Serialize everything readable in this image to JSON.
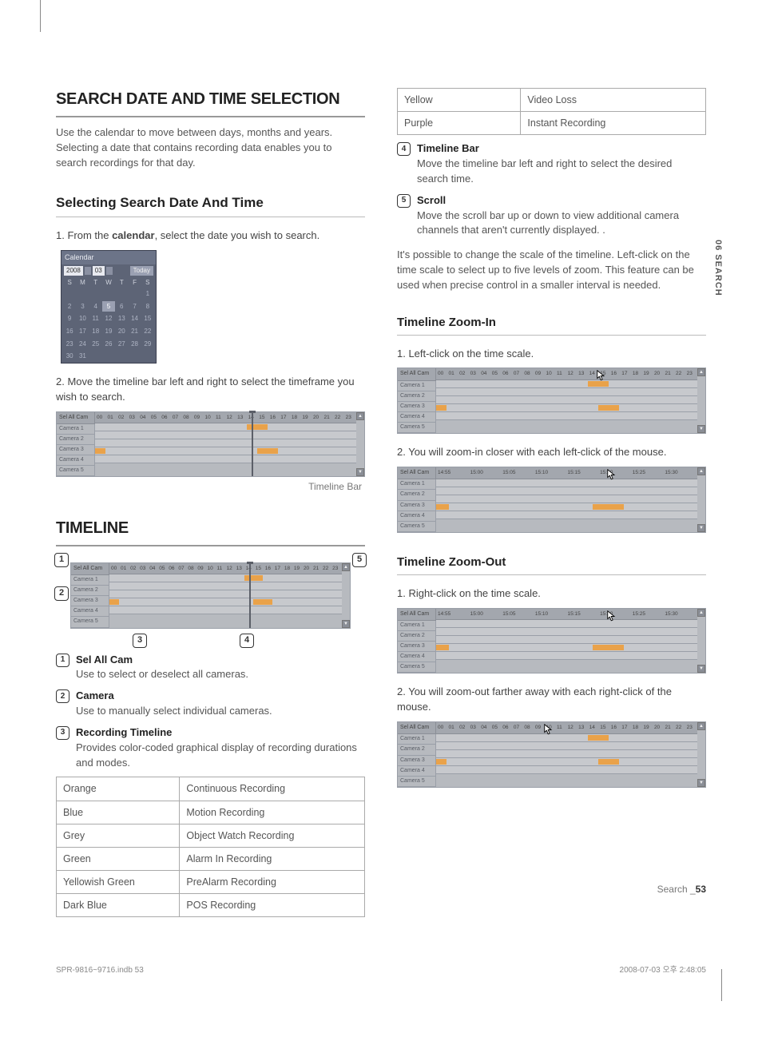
{
  "side_tab": "06 SEARCH",
  "left": {
    "h1": "SEARCH DATE AND TIME SELECTION",
    "intro": "Use the calendar to move between days, months and years. Selecting a date that contains recording data enables you to search recordings for that day.",
    "h2": "Selecting Search Date And Time",
    "step1_pre": "1. From the ",
    "step1_bold": "calendar",
    "step1_post": ", select the date you wish to search.",
    "calendar": {
      "title": "Calendar",
      "year": "2008",
      "month": "03",
      "today": "Today",
      "dow": [
        "S",
        "M",
        "T",
        "W",
        "T",
        "F",
        "S"
      ],
      "weeks": [
        [
          "",
          "",
          "",
          "",
          "",
          "",
          "1"
        ],
        [
          "2",
          "3",
          "4",
          "5",
          "6",
          "7",
          "8"
        ],
        [
          "9",
          "10",
          "11",
          "12",
          "13",
          "14",
          "15"
        ],
        [
          "16",
          "17",
          "18",
          "19",
          "20",
          "21",
          "22"
        ],
        [
          "23",
          "24",
          "25",
          "26",
          "27",
          "28",
          "29"
        ],
        [
          "30",
          "31",
          "",
          "",
          "",
          "",
          ""
        ]
      ],
      "selected": "5"
    },
    "step2": "2. Move the timeline bar left and right to select the timeframe you wish to search.",
    "timeline_caption": "Timeline Bar",
    "h1b": "TIMELINE",
    "items": [
      {
        "n": "1",
        "title": "Sel All Cam",
        "desc": "Use to select or deselect all cameras."
      },
      {
        "n": "2",
        "title": "Camera",
        "desc": "Use to manually select individual cameras."
      },
      {
        "n": "3",
        "title": "Recording Timeline",
        "desc": "Provides color-coded graphical display of recording durations and modes."
      }
    ],
    "color_table": [
      [
        "Orange",
        "Continuous Recording"
      ],
      [
        "Blue",
        "Motion Recording"
      ],
      [
        "Grey",
        "Object Watch Recording"
      ],
      [
        "Green",
        "Alarm In Recording"
      ],
      [
        "Yellowish Green",
        "PreAlarm Recording"
      ],
      [
        "Dark Blue",
        "POS Recording"
      ]
    ]
  },
  "right": {
    "color_table2": [
      [
        "Yellow",
        "Video Loss"
      ],
      [
        "Purple",
        "Instant Recording"
      ]
    ],
    "items2": [
      {
        "n": "4",
        "title": "Timeline Bar",
        "desc": "Move the timeline bar left and right to select the desired search time."
      },
      {
        "n": "5",
        "title": "Scroll",
        "desc": "Move the scroll bar up or down to view additional camera channels that aren't currently displayed. ."
      }
    ],
    "pnote": "It's possible to change the scale of the timeline. Left-click on the time scale to select up to five levels of zoom. This feature can be used when precise control in a smaller interval is needed.",
    "h3a": "Timeline Zoom-In",
    "zi_step1": "1. Left-click on the time scale.",
    "zi_step2": "2. You will zoom-in closer with each left-click of the mouse.",
    "h3b": "Timeline Zoom-Out",
    "zo_step1": "1. Right-click on the time scale.",
    "zo_step2": "2. You will zoom-out farther away with each right-click of the mouse."
  },
  "timeline_widget": {
    "header_btn": "Sel All Cam",
    "axis_full": [
      "00",
      "01",
      "02",
      "03",
      "04",
      "05",
      "06",
      "07",
      "08",
      "09",
      "10",
      "11",
      "12",
      "13",
      "14",
      "15",
      "16",
      "17",
      "18",
      "19",
      "20",
      "21",
      "22",
      "23"
    ],
    "axis_zoom": [
      "14:55",
      "15:00",
      "15:05",
      "15:10",
      "15:15",
      "15:20",
      "15:25",
      "15:30"
    ],
    "cams": [
      "Camera 1",
      "Camera 2",
      "Camera 3",
      "Camera 4",
      "Camera 5"
    ],
    "bar_pct_full": 60,
    "seg_color": "#e9a24a",
    "segments_full": {
      "Camera 1": [
        [
          58,
          66
        ]
      ],
      "Camera 4": [
        [
          0,
          4
        ],
        [
          62,
          70
        ]
      ]
    },
    "segments_zoom": {
      "Camera 4": [
        [
          0,
          5
        ],
        [
          60,
          72
        ]
      ]
    },
    "axis_half": [
      "00",
      "01",
      "02",
      "03",
      "04",
      "05",
      "06",
      "07",
      "08",
      "09",
      "10",
      "11",
      "12",
      "13",
      "14",
      "15",
      "16",
      "17",
      "18",
      "19",
      "20",
      "21",
      "22",
      "23"
    ],
    "cursor_full_pct": 62,
    "cursor_zoom_pct": 66,
    "cursor_half_pct": 42
  },
  "footer": {
    "right_label": "Search _",
    "right_page": "53",
    "doc_left": "SPR-9816~9716.indb   53",
    "doc_right": "2008-07-03   오후 2:48:05"
  },
  "style": {
    "bg": "#ffffff",
    "text": "#333333",
    "muted": "#555555",
    "rule": "#999999",
    "tl_bg": "#b7babf",
    "tl_hdr": "#a3a7ae",
    "tl_row": "#c7c9cd",
    "tl_border": "#9a9fa8",
    "callout_border": "#333333"
  }
}
